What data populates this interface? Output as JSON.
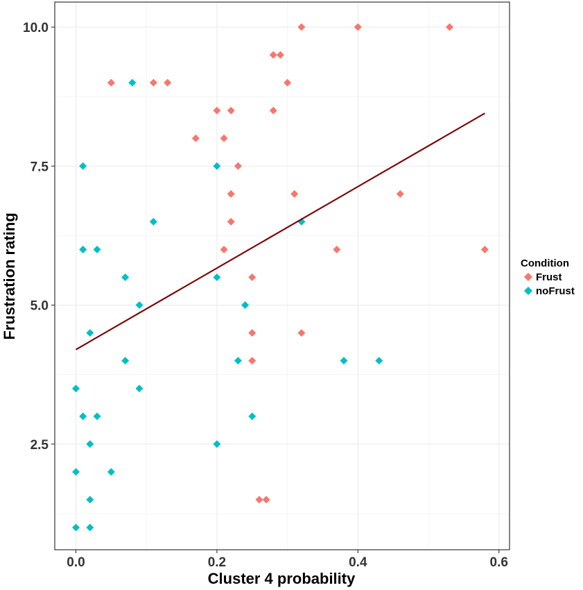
{
  "chart_data": {
    "type": "scatter",
    "title": "",
    "xlabel": "Cluster 4 probability",
    "ylabel": "Frustration rating",
    "xlim": [
      -0.03,
      0.615
    ],
    "ylim": [
      0.6,
      10.45
    ],
    "grid": true,
    "x_ticks": [
      0.0,
      0.2,
      0.4,
      0.6
    ],
    "x_tick_labels": [
      "0.0",
      "0.2",
      "0.4",
      "0.6"
    ],
    "y_ticks": [
      2.5,
      5.0,
      7.5,
      10.0
    ],
    "y_tick_labels": [
      "2.5",
      "5.0",
      "7.5",
      "10.0"
    ],
    "legend": {
      "title": "Condition",
      "position": "right",
      "entries": [
        {
          "label": "Frust",
          "color": "#F8766D"
        },
        {
          "label": "noFrust",
          "color": "#00BFC4"
        }
      ]
    },
    "series": [
      {
        "name": "Frust",
        "color": "#F8766D",
        "marker": "diamond",
        "points": [
          [
            0.05,
            9.0
          ],
          [
            0.11,
            9.0
          ],
          [
            0.13,
            9.0
          ],
          [
            0.17,
            8.0
          ],
          [
            0.2,
            8.5
          ],
          [
            0.21,
            8.0
          ],
          [
            0.21,
            6.0
          ],
          [
            0.22,
            8.5
          ],
          [
            0.22,
            7.0
          ],
          [
            0.22,
            6.5
          ],
          [
            0.23,
            7.5
          ],
          [
            0.25,
            5.5
          ],
          [
            0.25,
            4.5
          ],
          [
            0.25,
            4.0
          ],
          [
            0.26,
            1.5
          ],
          [
            0.27,
            1.5
          ],
          [
            0.28,
            9.5
          ],
          [
            0.29,
            9.5
          ],
          [
            0.28,
            8.5
          ],
          [
            0.3,
            9.0
          ],
          [
            0.31,
            7.0
          ],
          [
            0.32,
            10.0
          ],
          [
            0.32,
            4.5
          ],
          [
            0.37,
            6.0
          ],
          [
            0.4,
            10.0
          ],
          [
            0.46,
            7.0
          ],
          [
            0.53,
            10.0
          ],
          [
            0.58,
            6.0
          ]
        ]
      },
      {
        "name": "noFrust",
        "color": "#00BFC4",
        "marker": "diamond",
        "points": [
          [
            0.0,
            3.5
          ],
          [
            0.0,
            2.0
          ],
          [
            0.0,
            1.0
          ],
          [
            0.01,
            7.5
          ],
          [
            0.01,
            6.0
          ],
          [
            0.01,
            3.0
          ],
          [
            0.02,
            4.5
          ],
          [
            0.02,
            2.5
          ],
          [
            0.02,
            1.5
          ],
          [
            0.02,
            1.0
          ],
          [
            0.03,
            6.0
          ],
          [
            0.03,
            3.0
          ],
          [
            0.05,
            2.0
          ],
          [
            0.07,
            5.5
          ],
          [
            0.07,
            4.0
          ],
          [
            0.08,
            9.0
          ],
          [
            0.09,
            5.0
          ],
          [
            0.09,
            3.5
          ],
          [
            0.11,
            6.5
          ],
          [
            0.2,
            7.5
          ],
          [
            0.2,
            5.5
          ],
          [
            0.2,
            2.5
          ],
          [
            0.23,
            4.0
          ],
          [
            0.24,
            5.0
          ],
          [
            0.25,
            3.0
          ],
          [
            0.32,
            6.5
          ],
          [
            0.38,
            4.0
          ],
          [
            0.43,
            4.0
          ]
        ]
      }
    ],
    "trend_line": {
      "color": "#7B0A0A",
      "x": [
        0.0,
        0.58
      ],
      "y": [
        4.2,
        8.45
      ]
    }
  }
}
